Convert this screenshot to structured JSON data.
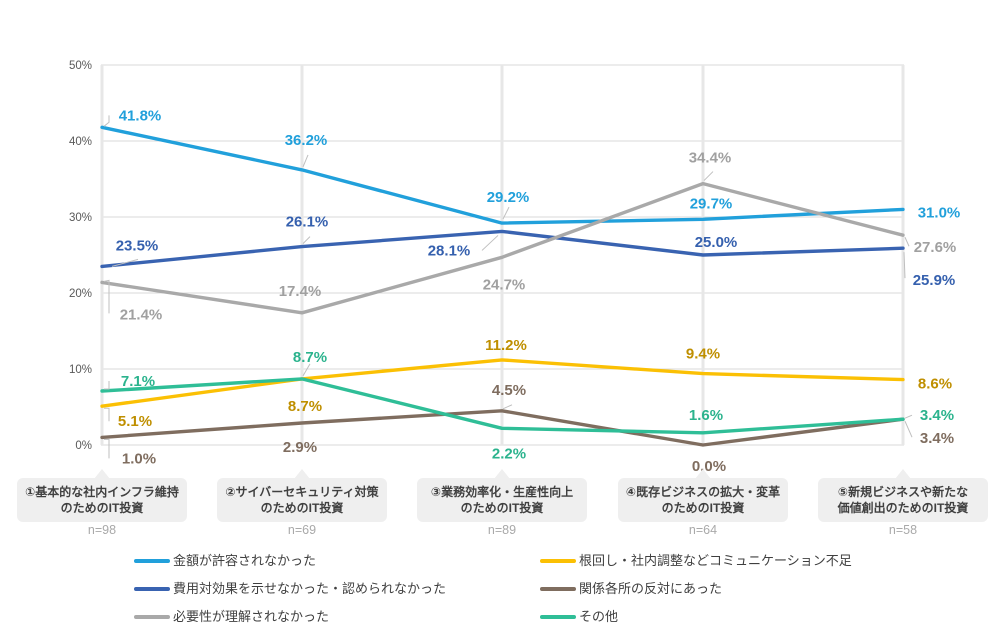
{
  "page": {
    "background": "#FFFFFF",
    "title": ""
  },
  "chart_data": {
    "type": "line",
    "title": "",
    "categories": [
      {
        "label_lines": [
          "①基本的な社内インフラ維持",
          "のためのIT投資"
        ],
        "n_label": "n=98"
      },
      {
        "label_lines": [
          "②サイバーセキュリティ対策",
          "のためのIT投資"
        ],
        "n_label": "n=69"
      },
      {
        "label_lines": [
          "③業務効率化・生産性向上",
          "のためのIT投資"
        ],
        "n_label": "n=89"
      },
      {
        "label_lines": [
          "④既存ビジネスの拡大・変革",
          "のためのIT投資"
        ],
        "n_label": "n=64"
      },
      {
        "label_lines": [
          "⑤新規ビジネスや新たな",
          "価値創出のためのIT投資"
        ],
        "n_label": "n=58"
      }
    ],
    "series": [
      {
        "name": "金額が許容されなかった",
        "color": "#21A0DB",
        "label_color": "#21A0DB",
        "values": [
          41.8,
          36.2,
          29.2,
          29.7,
          31.0
        ],
        "legend_column": 0,
        "legend_row": 0
      },
      {
        "name": "費用対効果を示せなかった・認められなかった",
        "color": "#3963B1",
        "label_color": "#3560AE",
        "values": [
          23.5,
          26.1,
          28.1,
          25.0,
          25.9
        ],
        "legend_column": 0,
        "legend_row": 1
      },
      {
        "name": "必要性が理解されなかった",
        "color": "#A9A9A9",
        "label_color": "#A0A0A0",
        "values": [
          21.4,
          17.4,
          24.7,
          34.4,
          27.6
        ],
        "legend_column": 0,
        "legend_row": 2
      },
      {
        "name": "根回し・社内調整などコミュニケーション不足",
        "color": "#FBC004",
        "label_color": "#BF8F00",
        "values": [
          5.1,
          8.7,
          11.2,
          9.4,
          8.6
        ],
        "legend_column": 1,
        "legend_row": 0
      },
      {
        "name": "関係各所の反対にあった",
        "color": "#7F6D5F",
        "label_color": "#7F6D5F",
        "values": [
          1.0,
          2.9,
          4.5,
          0.0,
          3.4
        ],
        "legend_column": 1,
        "legend_row": 1
      },
      {
        "name": "その他",
        "color": "#2FBE97",
        "label_color": "#2BB38D",
        "values": [
          7.1,
          8.7,
          2.2,
          1.6,
          3.4
        ],
        "legend_column": 1,
        "legend_row": 2
      }
    ],
    "y_axis": {
      "min": 0,
      "max": 50,
      "step": 10,
      "tick_labels": [
        "0%",
        "10%",
        "20%",
        "30%",
        "40%",
        "50%"
      ]
    },
    "data_label_suffix": "%",
    "grid": true,
    "legend_position": "bottom",
    "colors": {
      "h_grid_line": "#D9D9D9",
      "v_grid_line": "#E7E7E7",
      "axis_tick_text": "#595959",
      "category_box_bg": "#EFEFEF",
      "category_box_text": "#404040",
      "n_label_text": "#A9A9A9",
      "legend_text": "#3F3F3F",
      "leader_line": "#BFBFBF"
    }
  }
}
